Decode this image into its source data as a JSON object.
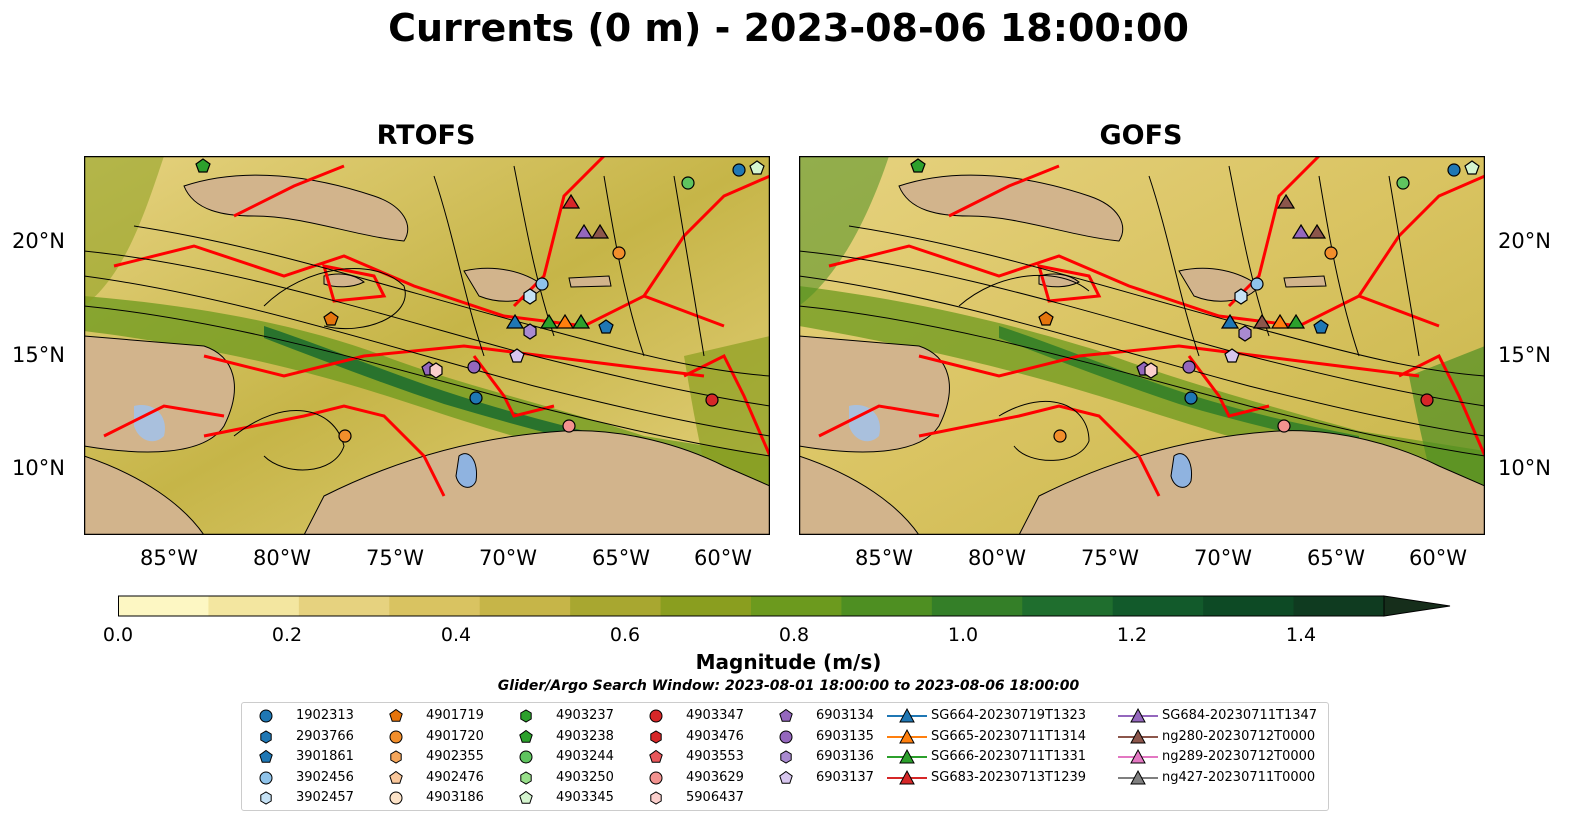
{
  "title": "Currents (0 m) - 2023-08-06 18:00:00",
  "panels": [
    {
      "title": "RTOFS"
    },
    {
      "title": "GOFS"
    }
  ],
  "map_axes": {
    "lon_ticks": [
      "85°W",
      "80°W",
      "75°W",
      "70°W",
      "65°W",
      "60°W"
    ],
    "lat_ticks": [
      "20°N",
      "15°N",
      "10°N"
    ]
  },
  "colorbar": {
    "label": "Magnitude (m/s)",
    "ticks": [
      "0.0",
      "0.2",
      "0.4",
      "0.6",
      "0.8",
      "1.0",
      "1.2",
      "1.4"
    ],
    "range": [
      0,
      1.5
    ],
    "extend": "max",
    "colormap": [
      "#fdf7c3",
      "#f3e6a0",
      "#e6d27f",
      "#d9c361",
      "#c6b548",
      "#a8a730",
      "#8a9e1f",
      "#6c9a1e",
      "#4e8f22",
      "#347f28",
      "#1f6e2e",
      "#125a2b",
      "#0d4a25",
      "#0f3b20",
      "#162e1b"
    ]
  },
  "search_window": "Glider/Argo Search Window: 2023-08-01 18:00:00 to 2023-08-06 18:00:00",
  "legend": {
    "columns": [
      [
        {
          "label": "1902313",
          "marker": "circle",
          "color": "#1f77b4"
        },
        {
          "label": "2903766",
          "marker": "hexagon",
          "color": "#1f77b4"
        },
        {
          "label": "3901861",
          "marker": "pentagon",
          "color": "#1f77b4"
        },
        {
          "label": "3902456",
          "marker": "circle",
          "color": "#8fc3ea"
        },
        {
          "label": "3902457",
          "marker": "hexagon",
          "color": "#c6e2f5"
        }
      ],
      [
        {
          "label": "4901719",
          "marker": "pentagon",
          "color": "#e5740c"
        },
        {
          "label": "4901720",
          "marker": "circle",
          "color": "#f28e2b"
        },
        {
          "label": "4902355",
          "marker": "hexagon",
          "color": "#f5a65b"
        },
        {
          "label": "4902476",
          "marker": "pentagon",
          "color": "#f9c79b"
        },
        {
          "label": "4903186",
          "marker": "circle",
          "color": "#fde3c8"
        }
      ],
      [
        {
          "label": "4903237",
          "marker": "hexagon",
          "color": "#2ca02c"
        },
        {
          "label": "4903238",
          "marker": "pentagon",
          "color": "#2ca02c"
        },
        {
          "label": "4903244",
          "marker": "circle",
          "color": "#5fc45f"
        },
        {
          "label": "4903250",
          "marker": "hexagon",
          "color": "#98df8a"
        },
        {
          "label": "4903345",
          "marker": "pentagon",
          "color": "#d5f5cf"
        }
      ],
      [
        {
          "label": "4903347",
          "marker": "circle",
          "color": "#d62728"
        },
        {
          "label": "4903476",
          "marker": "hexagon",
          "color": "#d62728"
        },
        {
          "label": "4903553",
          "marker": "pentagon",
          "color": "#e8575a"
        },
        {
          "label": "4903629",
          "marker": "circle",
          "color": "#f2928f"
        },
        {
          "label": "5906437",
          "marker": "hexagon",
          "color": "#fbcfcc"
        }
      ],
      [
        {
          "label": "6903134",
          "marker": "pentagon",
          "color": "#9467bd"
        },
        {
          "label": "6903135",
          "marker": "circle",
          "color": "#9467bd"
        },
        {
          "label": "6903136",
          "marker": "hexagon",
          "color": "#a98ad0"
        },
        {
          "label": "6903137",
          "marker": "pentagon",
          "color": "#d7c6ee"
        }
      ],
      [
        {
          "label": "SG664-20230719T1323",
          "marker": "triangle",
          "color": "#1f77b4"
        },
        {
          "label": "SG665-20230711T1314",
          "marker": "triangle",
          "color": "#ff7f0e"
        },
        {
          "label": "SG666-20230711T1331",
          "marker": "triangle",
          "color": "#2ca02c"
        },
        {
          "label": "SG683-20230713T1239",
          "marker": "triangle",
          "color": "#d62728"
        }
      ],
      [
        {
          "label": "SG684-20230711T1347",
          "marker": "triangle",
          "color": "#9467bd"
        },
        {
          "label": "ng280-20230712T0000",
          "marker": "triangle",
          "color": "#8c564b"
        },
        {
          "label": "ng289-20230712T0000",
          "marker": "triangle",
          "color": "#e377c2"
        },
        {
          "label": "ng427-20230711T0000",
          "marker": "triangle",
          "color": "#7f7f7f"
        }
      ]
    ]
  },
  "colors": {
    "land": "#d2b48c",
    "lake": "#8fb3e0",
    "boundaries": "#ff0000",
    "streamlines": "#000000",
    "map_background": "#e9d98a"
  }
}
